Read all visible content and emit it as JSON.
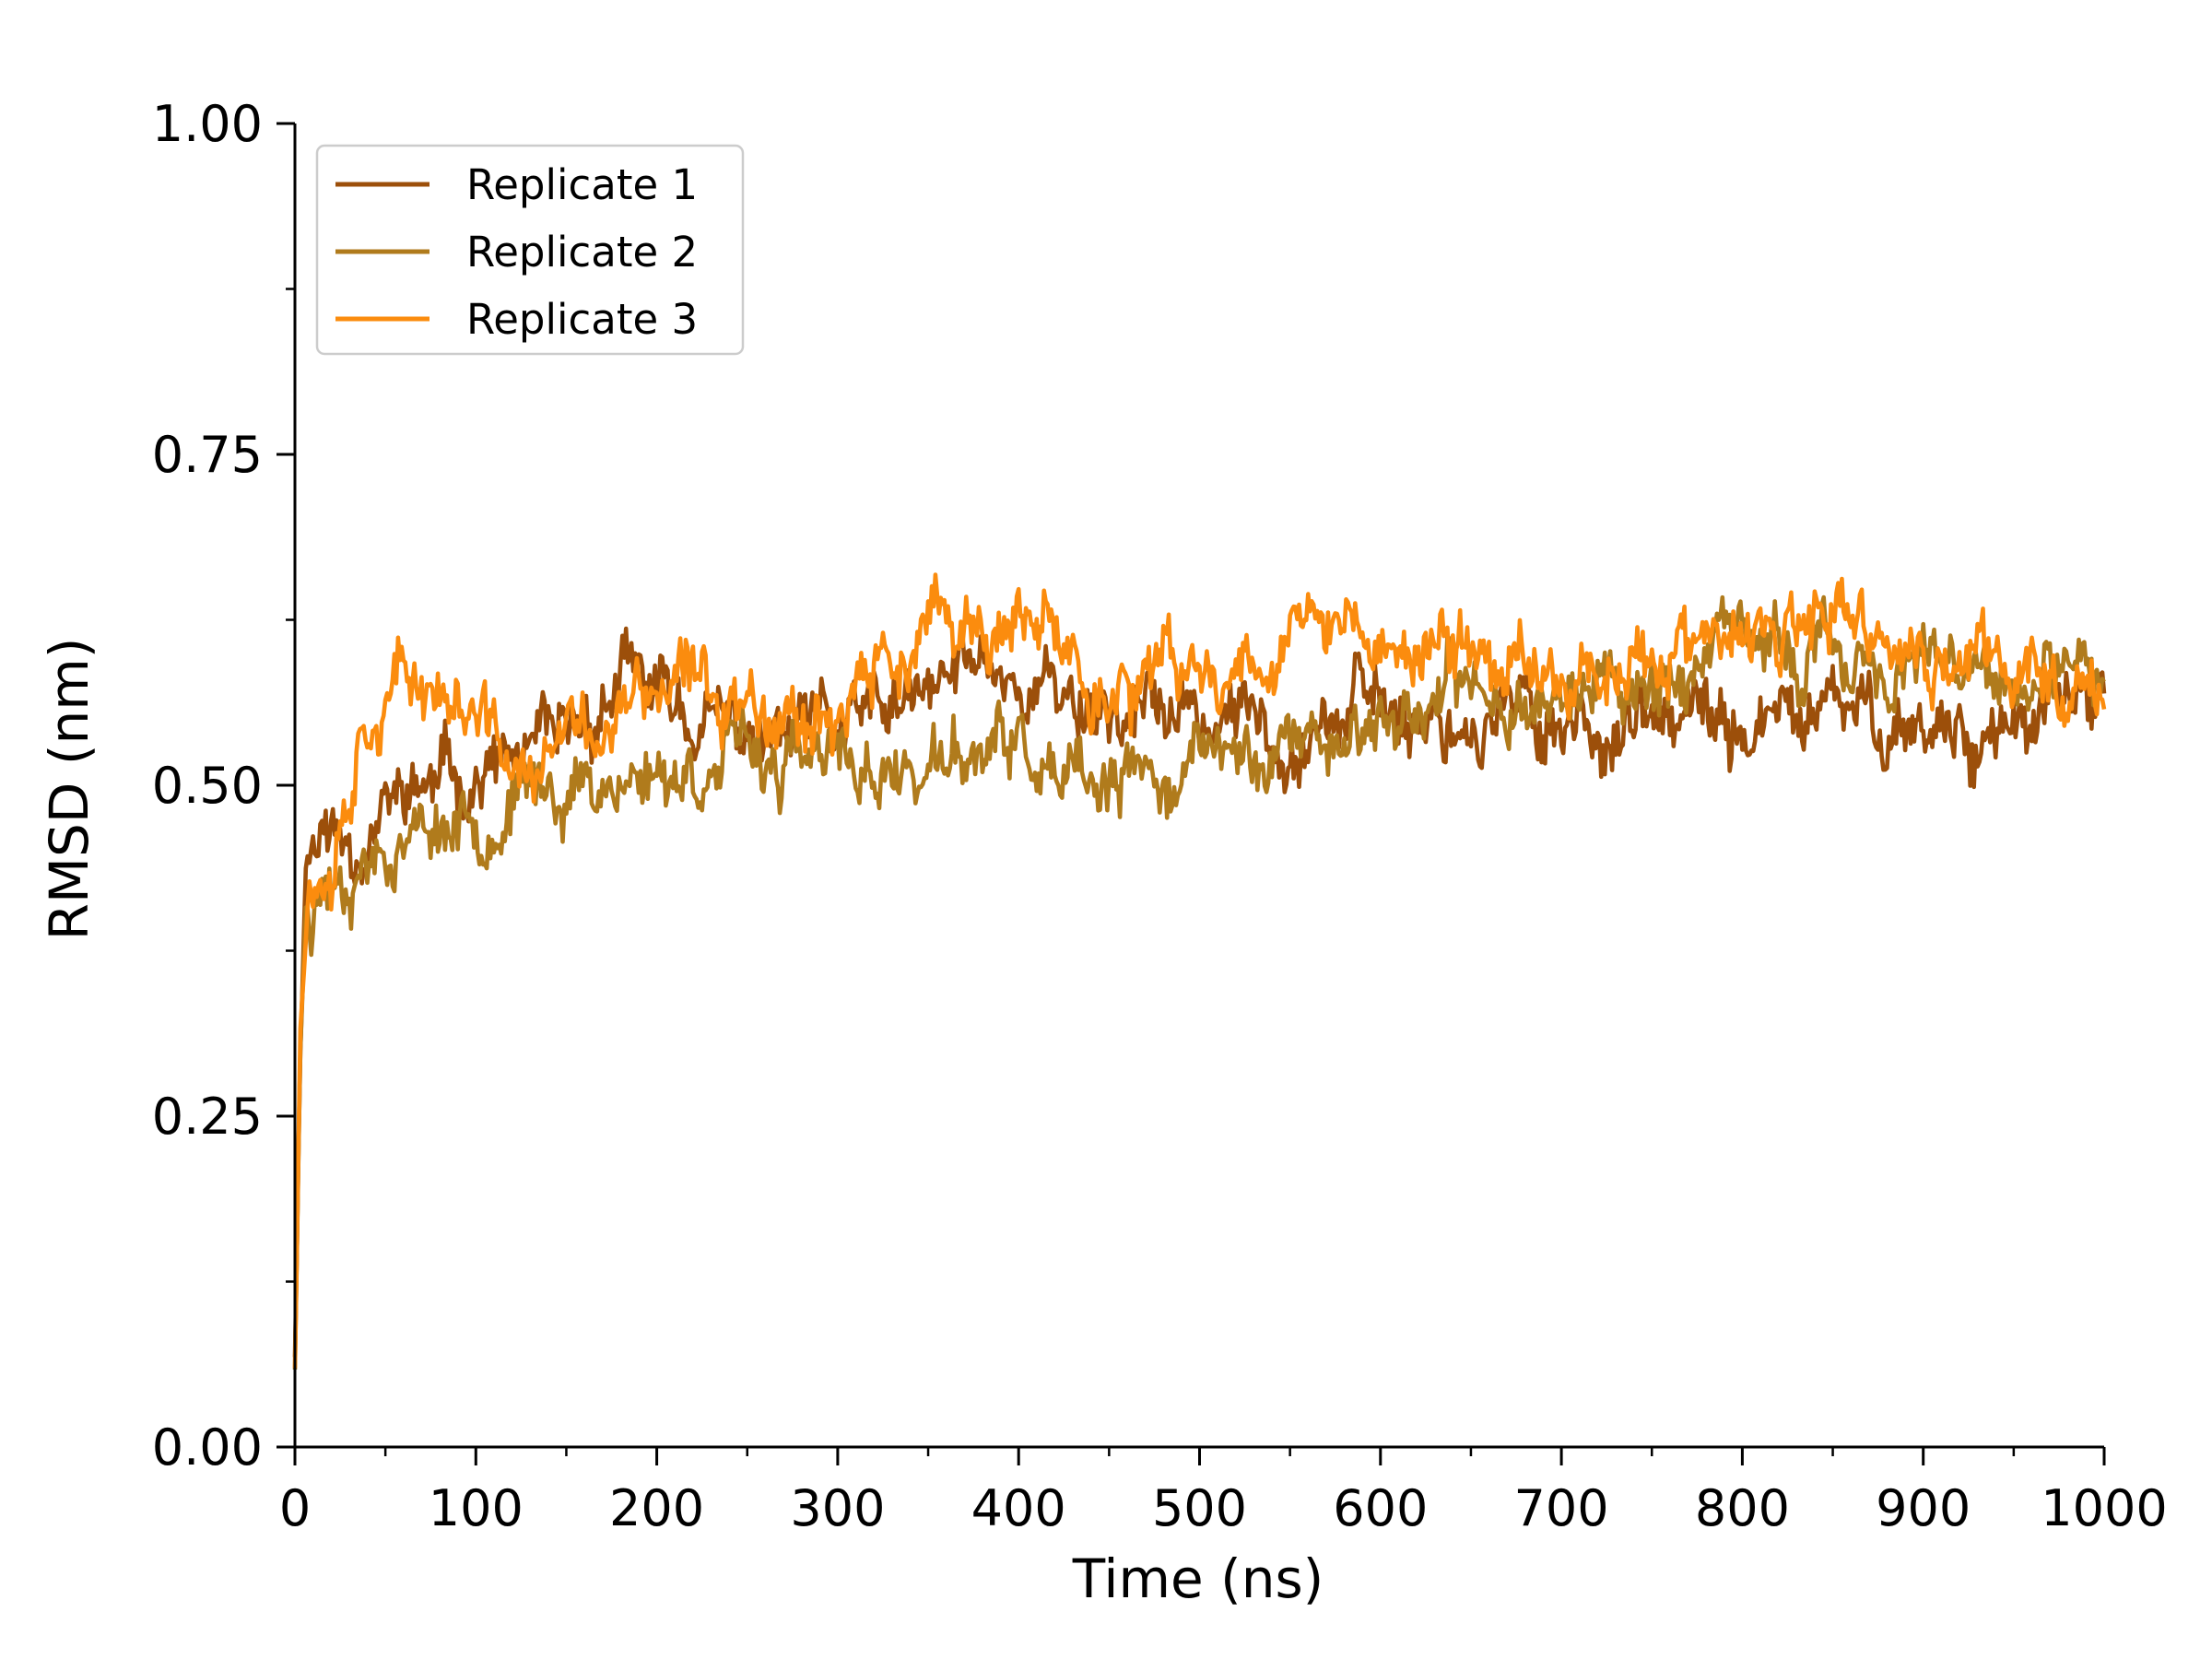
{
  "chart_data": {
    "type": "line",
    "title": "",
    "xlabel": "Time (ns)",
    "ylabel": "RMSD (nm)",
    "xlim": [
      0,
      1000
    ],
    "ylim": [
      0,
      1.0
    ],
    "x_ticks": [
      0,
      100,
      200,
      300,
      400,
      500,
      600,
      700,
      800,
      900,
      1000
    ],
    "x_tick_labels": [
      "0",
      "100",
      "200",
      "300",
      "400",
      "500",
      "600",
      "700",
      "800",
      "900",
      "1000"
    ],
    "y_ticks": [
      0,
      0.25,
      0.5,
      0.75,
      1.0
    ],
    "y_tick_labels": [
      "0.00",
      "0.25",
      "0.50",
      "0.75",
      "1.00"
    ],
    "x_minor_step": 50,
    "y_minor_step": 0.125,
    "grid": false,
    "legend_position": "top-left",
    "series": [
      {
        "name": "Replicate 1",
        "color": "#9c4f0a",
        "noise": 0.028,
        "seed": 11,
        "keypoints": [
          [
            0,
            0.07
          ],
          [
            3,
            0.3
          ],
          [
            6,
            0.44
          ],
          [
            10,
            0.47
          ],
          [
            30,
            0.46
          ],
          [
            60,
            0.49
          ],
          [
            100,
            0.51
          ],
          [
            150,
            0.52
          ],
          [
            180,
            0.58
          ],
          [
            220,
            0.55
          ],
          [
            260,
            0.53
          ],
          [
            300,
            0.54
          ],
          [
            350,
            0.56
          ],
          [
            380,
            0.6
          ],
          [
            400,
            0.58
          ],
          [
            450,
            0.56
          ],
          [
            500,
            0.55
          ],
          [
            550,
            0.55
          ],
          [
            600,
            0.56
          ],
          [
            650,
            0.55
          ],
          [
            700,
            0.55
          ],
          [
            750,
            0.54
          ],
          [
            800,
            0.54
          ],
          [
            850,
            0.55
          ],
          [
            900,
            0.55
          ],
          [
            950,
            0.54
          ],
          [
            1000,
            0.56
          ]
        ]
      },
      {
        "name": "Replicate 2",
        "color": "#b07b1c",
        "noise": 0.026,
        "seed": 23,
        "keypoints": [
          [
            0,
            0.06
          ],
          [
            3,
            0.3
          ],
          [
            6,
            0.41
          ],
          [
            15,
            0.43
          ],
          [
            50,
            0.46
          ],
          [
            100,
            0.48
          ],
          [
            150,
            0.5
          ],
          [
            200,
            0.51
          ],
          [
            250,
            0.52
          ],
          [
            300,
            0.51
          ],
          [
            350,
            0.51
          ],
          [
            400,
            0.53
          ],
          [
            420,
            0.49
          ],
          [
            450,
            0.49
          ],
          [
            500,
            0.52
          ],
          [
            550,
            0.53
          ],
          [
            600,
            0.55
          ],
          [
            650,
            0.57
          ],
          [
            700,
            0.57
          ],
          [
            750,
            0.58
          ],
          [
            800,
            0.6
          ],
          [
            850,
            0.6
          ],
          [
            900,
            0.58
          ],
          [
            950,
            0.57
          ],
          [
            1000,
            0.57
          ]
        ]
      },
      {
        "name": "Replicate 3",
        "color": "#fb8c0e",
        "noise": 0.028,
        "seed": 37,
        "keypoints": [
          [
            0,
            0.06
          ],
          [
            3,
            0.32
          ],
          [
            8,
            0.43
          ],
          [
            20,
            0.46
          ],
          [
            40,
            0.57
          ],
          [
            80,
            0.58
          ],
          [
            110,
            0.53
          ],
          [
            130,
            0.5
          ],
          [
            150,
            0.53
          ],
          [
            200,
            0.57
          ],
          [
            250,
            0.57
          ],
          [
            300,
            0.56
          ],
          [
            350,
            0.61
          ],
          [
            380,
            0.62
          ],
          [
            420,
            0.6
          ],
          [
            460,
            0.57
          ],
          [
            500,
            0.58
          ],
          [
            550,
            0.62
          ],
          [
            580,
            0.62
          ],
          [
            600,
            0.6
          ],
          [
            650,
            0.6
          ],
          [
            700,
            0.59
          ],
          [
            750,
            0.6
          ],
          [
            800,
            0.6
          ],
          [
            860,
            0.62
          ],
          [
            900,
            0.59
          ],
          [
            950,
            0.59
          ],
          [
            1000,
            0.58
          ]
        ]
      }
    ]
  }
}
